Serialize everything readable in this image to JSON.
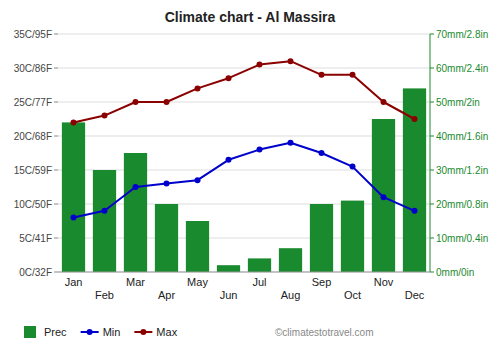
{
  "chart_data": {
    "type": "bar",
    "title": "Climate chart - Al Massira",
    "categories": [
      "Jan",
      "Feb",
      "Mar",
      "Apr",
      "May",
      "Jun",
      "Jul",
      "Aug",
      "Sep",
      "Oct",
      "Nov",
      "Dec"
    ],
    "series": [
      {
        "name": "Prec",
        "type": "bar",
        "axis": "y2",
        "color": "#1a8a2e",
        "values": [
          44,
          30,
          35,
          20,
          15,
          2,
          4,
          7,
          20,
          21,
          45,
          54
        ]
      },
      {
        "name": "Min",
        "type": "line",
        "marker": "circle",
        "color": "#0000cc",
        "values": [
          8,
          9,
          12.5,
          13,
          13.5,
          16.5,
          18,
          19,
          17.5,
          15.5,
          11,
          9
        ]
      },
      {
        "name": "Max",
        "type": "line",
        "marker": "circle",
        "color": "#8b0000",
        "values": [
          22,
          23,
          25,
          25,
          27,
          28.5,
          30.5,
          31,
          29,
          29,
          25,
          22.5
        ]
      }
    ],
    "ylim": [
      0,
      35
    ],
    "yticks": [
      {
        "value": 0,
        "label": "0C/32F"
      },
      {
        "value": 5,
        "label": "5C/41F"
      },
      {
        "value": 10,
        "label": "10C/50F"
      },
      {
        "value": 15,
        "label": "15C/59F"
      },
      {
        "value": 20,
        "label": "20C/68F"
      },
      {
        "value": 25,
        "label": "25C/77F"
      },
      {
        "value": 30,
        "label": "30C/86F"
      },
      {
        "value": 35,
        "label": "35C/95F"
      }
    ],
    "y2lim": [
      0,
      70
    ],
    "y2ticks": [
      {
        "value": 0,
        "label": "0mm/0in"
      },
      {
        "value": 10,
        "label": "10mm/0.4in"
      },
      {
        "value": 20,
        "label": "20mm/0.8in"
      },
      {
        "value": 30,
        "label": "30mm/1.2in"
      },
      {
        "value": 40,
        "label": "40mm/1.6in"
      },
      {
        "value": 50,
        "label": "50mm/2in"
      },
      {
        "value": 60,
        "label": "60mm/2.4in"
      },
      {
        "value": 70,
        "label": "70mm/2.8in"
      }
    ],
    "grid": true,
    "legend": "bottom left",
    "annotations": [
      "©climatestotravel.com"
    ]
  }
}
